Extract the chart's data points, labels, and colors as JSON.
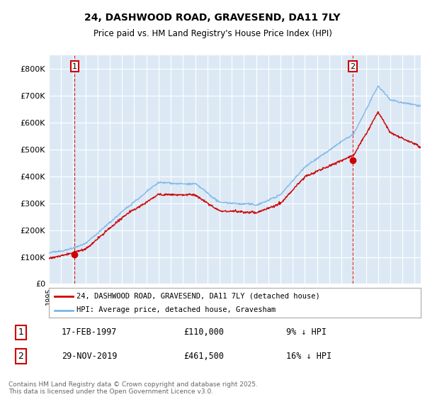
{
  "title_line1": "24, DASHWOOD ROAD, GRAVESEND, DA11 7LY",
  "title_line2": "Price paid vs. HM Land Registry's House Price Index (HPI)",
  "ylim": [
    0,
    850000
  ],
  "yticks": [
    0,
    100000,
    200000,
    300000,
    400000,
    500000,
    600000,
    700000,
    800000
  ],
  "ytick_labels": [
    "£0",
    "£100K",
    "£200K",
    "£300K",
    "£400K",
    "£500K",
    "£600K",
    "£700K",
    "£800K"
  ],
  "plot_bg_color": "#dce9f5",
  "line_color_price": "#cc0000",
  "line_color_hpi": "#7eb6e8",
  "transaction1_date": 1997.12,
  "transaction1_price": 110000,
  "transaction2_date": 2019.91,
  "transaction2_price": 461500,
  "legend_label1": "24, DASHWOOD ROAD, GRAVESEND, DA11 7LY (detached house)",
  "legend_label2": "HPI: Average price, detached house, Gravesham",
  "annotation1_date": "17-FEB-1997",
  "annotation1_price": "£110,000",
  "annotation1_note": "9% ↓ HPI",
  "annotation2_date": "29-NOV-2019",
  "annotation2_price": "£461,500",
  "annotation2_note": "16% ↓ HPI",
  "footer": "Contains HM Land Registry data © Crown copyright and database right 2025.\nThis data is licensed under the Open Government Licence v3.0.",
  "xmin": 1995,
  "xmax": 2025.5,
  "grid_color": "#ffffff"
}
